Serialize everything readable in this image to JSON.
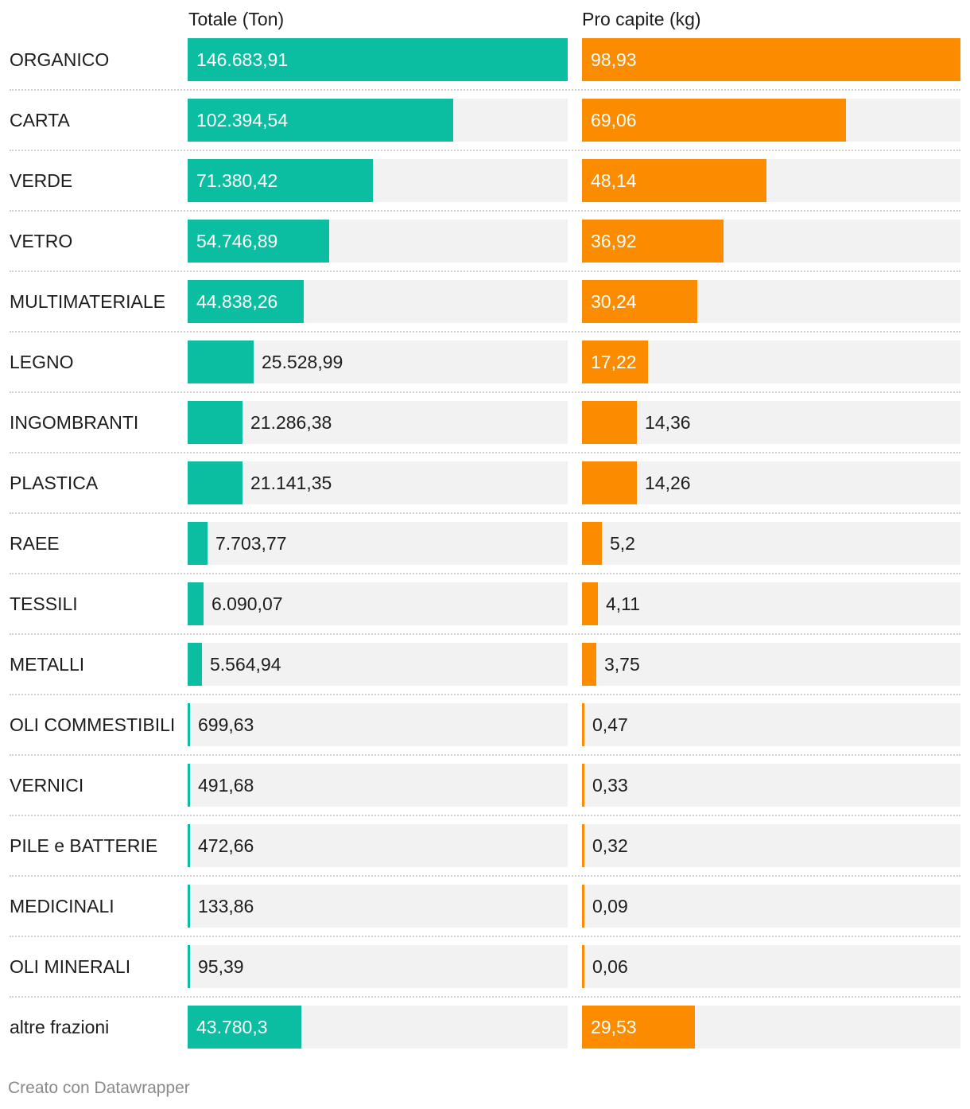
{
  "chart_data": {
    "type": "bar",
    "title": "",
    "series": [
      {
        "name": "Totale (Ton)",
        "color": "#0bbda1",
        "max": 146683.91,
        "labels": [
          "146.683,91",
          "102.394,54",
          "71.380,42",
          "54.746,89",
          "44.838,26",
          "25.528,99",
          "21.286,38",
          "21.141,35",
          "7.703,77",
          "6.090,07",
          "5.564,94",
          "699,63",
          "491,68",
          "472,66",
          "133,86",
          "95,39",
          "43.780,3"
        ],
        "values": [
          146683.91,
          102394.54,
          71380.42,
          54746.89,
          44838.26,
          25528.99,
          21286.38,
          21141.35,
          7703.77,
          6090.07,
          5564.94,
          699.63,
          491.68,
          472.66,
          133.86,
          95.39,
          43780.3
        ]
      },
      {
        "name": "Pro capite (kg)",
        "color": "#fb8c00",
        "max": 98.93,
        "labels": [
          "98,93",
          "69,06",
          "48,14",
          "36,92",
          "30,24",
          "17,22",
          "14,36",
          "14,26",
          "5,2",
          "4,11",
          "3,75",
          "0,47",
          "0,33",
          "0,32",
          "0,09",
          "0,06",
          "29,53"
        ],
        "values": [
          98.93,
          69.06,
          48.14,
          36.92,
          30.24,
          17.22,
          14.36,
          14.26,
          5.2,
          4.11,
          3.75,
          0.47,
          0.33,
          0.32,
          0.09,
          0.06,
          29.53
        ]
      }
    ],
    "categories": [
      "ORGANICO",
      "CARTA",
      "VERDE",
      "VETRO",
      "MULTIMATERIALE",
      "LEGNO",
      "INGOMBRANTI",
      "PLASTICA",
      "RAEE",
      "TESSILI",
      "METALLI",
      "OLI COMMESTIBILI",
      "VERNICI",
      "PILE e BATTERIE",
      "MEDICINALI",
      "OLI MINERALI",
      "altre frazioni"
    ]
  },
  "footer": "Creato con Datawrapper"
}
